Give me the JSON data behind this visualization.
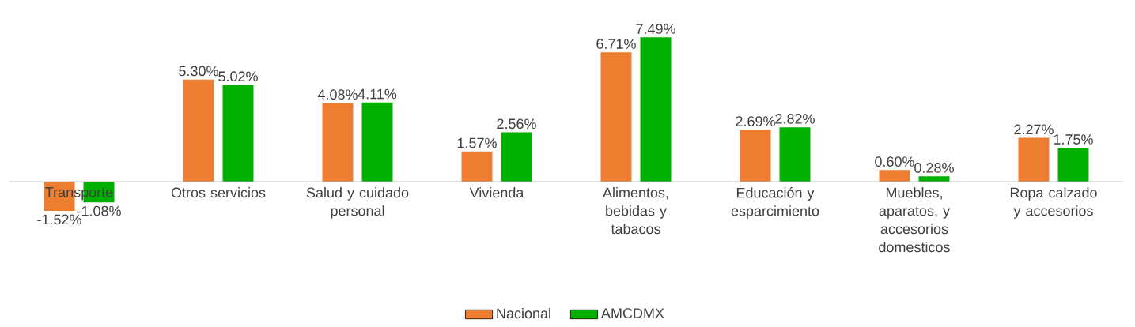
{
  "chart_data": {
    "type": "bar",
    "categories": [
      "Transporte",
      "Otros servicios",
      "Salud y cuidado personal",
      "Vivienda",
      "Alimentos, bebidas y tabacos",
      "Educación y esparcimiento",
      "Muebles, aparatos, y accesorios domesticos",
      "Ropa calzado y accesorios"
    ],
    "series": [
      {
        "name": "Nacional",
        "color": "#ed7d31",
        "values": [
          -1.52,
          5.3,
          4.08,
          1.57,
          6.71,
          2.69,
          0.6,
          2.27
        ],
        "value_labels": [
          "-1.52%",
          "5.30%",
          "4.08%",
          "1.57%",
          "6.71%",
          "2.69%",
          "0.60%",
          "2.27%"
        ]
      },
      {
        "name": "AMCDMX",
        "color": "#00b000",
        "values": [
          -1.08,
          5.02,
          4.11,
          2.56,
          7.49,
          2.82,
          0.28,
          1.75
        ],
        "value_labels": [
          "-1.08%",
          "5.02%",
          "4.11%",
          "2.56%",
          "7.49%",
          "2.82%",
          "0.28%",
          "1.75%"
        ]
      }
    ],
    "legend": "bottom"
  }
}
